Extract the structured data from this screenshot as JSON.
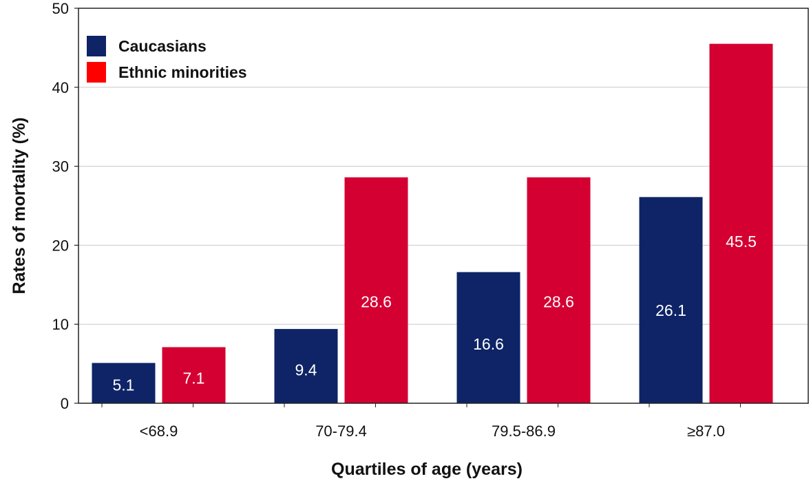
{
  "chart_data": {
    "type": "bar",
    "title": "",
    "xlabel": "Quartiles of age (years)",
    "ylabel": "Rates of mortality (%)",
    "ylim": [
      0,
      50
    ],
    "yticks": [
      0,
      10,
      20,
      30,
      40,
      50
    ],
    "grid": true,
    "legend_position": "top-left",
    "categories": [
      "<68.9",
      "70-79.4",
      "79.5-86.9",
      "≥87.0"
    ],
    "series": [
      {
        "name": "Caucasians",
        "color": "#0e2466",
        "values": [
          5.1,
          9.4,
          16.6,
          26.1
        ],
        "labels": [
          "5.1",
          "9.4",
          "16.6",
          "26.1"
        ]
      },
      {
        "name": "Ethnic minorities",
        "color": "#d40032",
        "values": [
          7.1,
          28.6,
          28.6,
          45.5
        ],
        "labels": [
          "7.1",
          "28.6",
          "28.6",
          "45.5"
        ]
      }
    ]
  }
}
